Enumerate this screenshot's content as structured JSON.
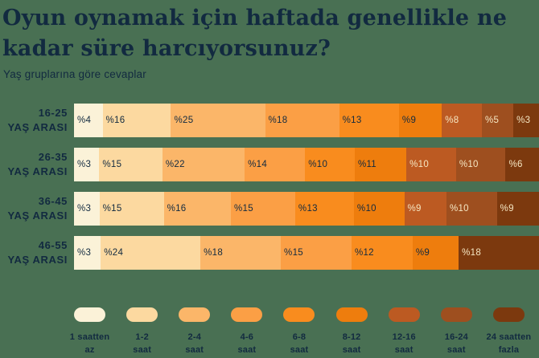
{
  "background_color": "#497053",
  "text_color": "#122A40",
  "light_label_color": "#F6E7C3",
  "header": {
    "title_line1": "Oyun oynamak için haftada genellikle ne",
    "title_line2": "kadar süre harcıyorsunuz?",
    "subtitle": "Yaş gruplarına göre cevaplar"
  },
  "chart_data": {
    "type": "bar",
    "variant": "horizontal-stacked",
    "unit": "percent",
    "value_prefix": "%",
    "title": "Oyun oynamak için haftada genellikle ne kadar süre harcıyorsunuz?",
    "subtitle": "Yaş gruplarına göre cevaplar",
    "legend_position": "bottom",
    "grid": false,
    "categories": [
      {
        "label": "1 saatten az",
        "label_line1": "1 saatten",
        "label_line2": "az",
        "color": "#FBF2D8",
        "light_text": false
      },
      {
        "label": "1-2 saat",
        "label_line1": "1-2",
        "label_line2": "saat",
        "color": "#FCD9A0",
        "light_text": false
      },
      {
        "label": "2-4 saat",
        "label_line1": "2-4",
        "label_line2": "saat",
        "color": "#FBB669",
        "light_text": false
      },
      {
        "label": "4-6 saat",
        "label_line1": "4-6",
        "label_line2": "saat",
        "color": "#FB9F45",
        "light_text": false
      },
      {
        "label": "6-8 saat",
        "label_line1": "6-8",
        "label_line2": "saat",
        "color": "#F98C1E",
        "light_text": false
      },
      {
        "label": "8-12 saat",
        "label_line1": "8-12",
        "label_line2": "saat",
        "color": "#EE7D0D",
        "light_text": false
      },
      {
        "label": "12-16 saat",
        "label_line1": "12-16",
        "label_line2": "saat",
        "color": "#BC5A22",
        "light_text": true
      },
      {
        "label": "16-24 saat",
        "label_line1": "16-24",
        "label_line2": "saat",
        "color": "#9E4F1F",
        "light_text": true
      },
      {
        "label": "24 saatten fazla",
        "label_line1": "24 saatten",
        "label_line2": "fazla",
        "color": "#7C390E",
        "light_text": true
      }
    ],
    "rows": [
      {
        "group": "16-25 YAŞ ARASI",
        "group_line1": "16-25",
        "group_line2": "YAŞ ARASI",
        "segments": [
          {
            "category_index": 0,
            "value": 4
          },
          {
            "category_index": 1,
            "value": 16
          },
          {
            "category_index": 2,
            "value": 25
          },
          {
            "category_index": 3,
            "value": 18
          },
          {
            "category_index": 4,
            "value": 13
          },
          {
            "category_index": 5,
            "value": 9
          },
          {
            "category_index": 6,
            "value": 8
          },
          {
            "category_index": 7,
            "value": 5
          },
          {
            "category_index": 8,
            "value": 3
          }
        ]
      },
      {
        "group": "26-35 YAŞ ARASI",
        "group_line1": "26-35",
        "group_line2": "YAŞ ARASI",
        "segments": [
          {
            "category_index": 0,
            "value": 3
          },
          {
            "category_index": 1,
            "value": 15
          },
          {
            "category_index": 2,
            "value": 22
          },
          {
            "category_index": 3,
            "value": 14
          },
          {
            "category_index": 4,
            "value": 10
          },
          {
            "category_index": 5,
            "value": 11
          },
          {
            "category_index": 6,
            "value": 10
          },
          {
            "category_index": 7,
            "value": 10
          },
          {
            "category_index": 8,
            "value": 6
          }
        ]
      },
      {
        "group": "36-45 YAŞ ARASI",
        "group_line1": "36-45",
        "group_line2": "YAŞ ARASI",
        "segments": [
          {
            "category_index": 0,
            "value": 3
          },
          {
            "category_index": 1,
            "value": 15
          },
          {
            "category_index": 2,
            "value": 16
          },
          {
            "category_index": 3,
            "value": 15
          },
          {
            "category_index": 4,
            "value": 13
          },
          {
            "category_index": 5,
            "value": 10
          },
          {
            "category_index": 6,
            "value": 9
          },
          {
            "category_index": 7,
            "value": 10
          },
          {
            "category_index": 8,
            "value": 9
          }
        ]
      },
      {
        "group": "46-55 YAŞ ARASI",
        "group_line1": "46-55",
        "group_line2": "YAŞ ARASI",
        "segments": [
          {
            "category_index": 0,
            "value": 3
          },
          {
            "category_index": 1,
            "value": 24
          },
          {
            "category_index": 2,
            "value": 18
          },
          {
            "category_index": 3,
            "value": 15
          },
          {
            "category_index": 4,
            "value": 12
          },
          {
            "category_index": 5,
            "value": 9
          },
          {
            "category_index": 8,
            "value": 18
          }
        ]
      }
    ]
  }
}
